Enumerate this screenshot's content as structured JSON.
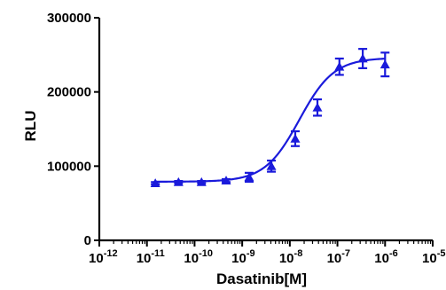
{
  "chart_data": {
    "type": "scatter",
    "xlabel": "Dasatinib[M]",
    "ylabel": "RLU",
    "xscale": "log",
    "xlim": [
      1e-12,
      1e-05
    ],
    "ylim": [
      0,
      300000
    ],
    "x_tick_base": "10",
    "x_ticks": [
      {
        "value": 1e-12,
        "exponent": "-12"
      },
      {
        "value": 1e-11,
        "exponent": "-11"
      },
      {
        "value": 1e-10,
        "exponent": "-10"
      },
      {
        "value": 1e-09,
        "exponent": "-9"
      },
      {
        "value": 1e-08,
        "exponent": "-8"
      },
      {
        "value": 1e-07,
        "exponent": "-7"
      },
      {
        "value": 1e-06,
        "exponent": "-6"
      },
      {
        "value": 1e-05,
        "exponent": "-5"
      }
    ],
    "y_ticks": [
      {
        "value": 0,
        "label": "0"
      },
      {
        "value": 100000,
        "label": "100000"
      },
      {
        "value": 200000,
        "label": "200000"
      },
      {
        "value": 300000,
        "label": "300000"
      }
    ],
    "grid": false,
    "legend": "none",
    "colors": {
      "series": "#1a1adb",
      "axis": "#000000"
    },
    "series": [
      {
        "marker": "triangle",
        "points": [
          {
            "x": 1.5e-11,
            "y": 77000,
            "err": 1500
          },
          {
            "x": 4.6e-11,
            "y": 78500,
            "err": 1500
          },
          {
            "x": 1.4e-10,
            "y": 78500,
            "err": 1500
          },
          {
            "x": 4.6e-10,
            "y": 80500,
            "err": 2000
          },
          {
            "x": 1.4e-09,
            "y": 85000,
            "err": 6000
          },
          {
            "x": 4.1e-09,
            "y": 100000,
            "err": 7500
          },
          {
            "x": 1.3e-08,
            "y": 137000,
            "err": 10000
          },
          {
            "x": 3.8e-08,
            "y": 179000,
            "err": 11000
          },
          {
            "x": 1.1e-07,
            "y": 234000,
            "err": 11000
          },
          {
            "x": 3.4e-07,
            "y": 245000,
            "err": 13000
          },
          {
            "x": 1e-06,
            "y": 237000,
            "err": 16000
          }
        ],
        "fit": {
          "model": "sigmoid",
          "bottom": 79000,
          "top": 246000,
          "log_ec50": -7.8,
          "hill": 1.2
        }
      }
    ]
  }
}
